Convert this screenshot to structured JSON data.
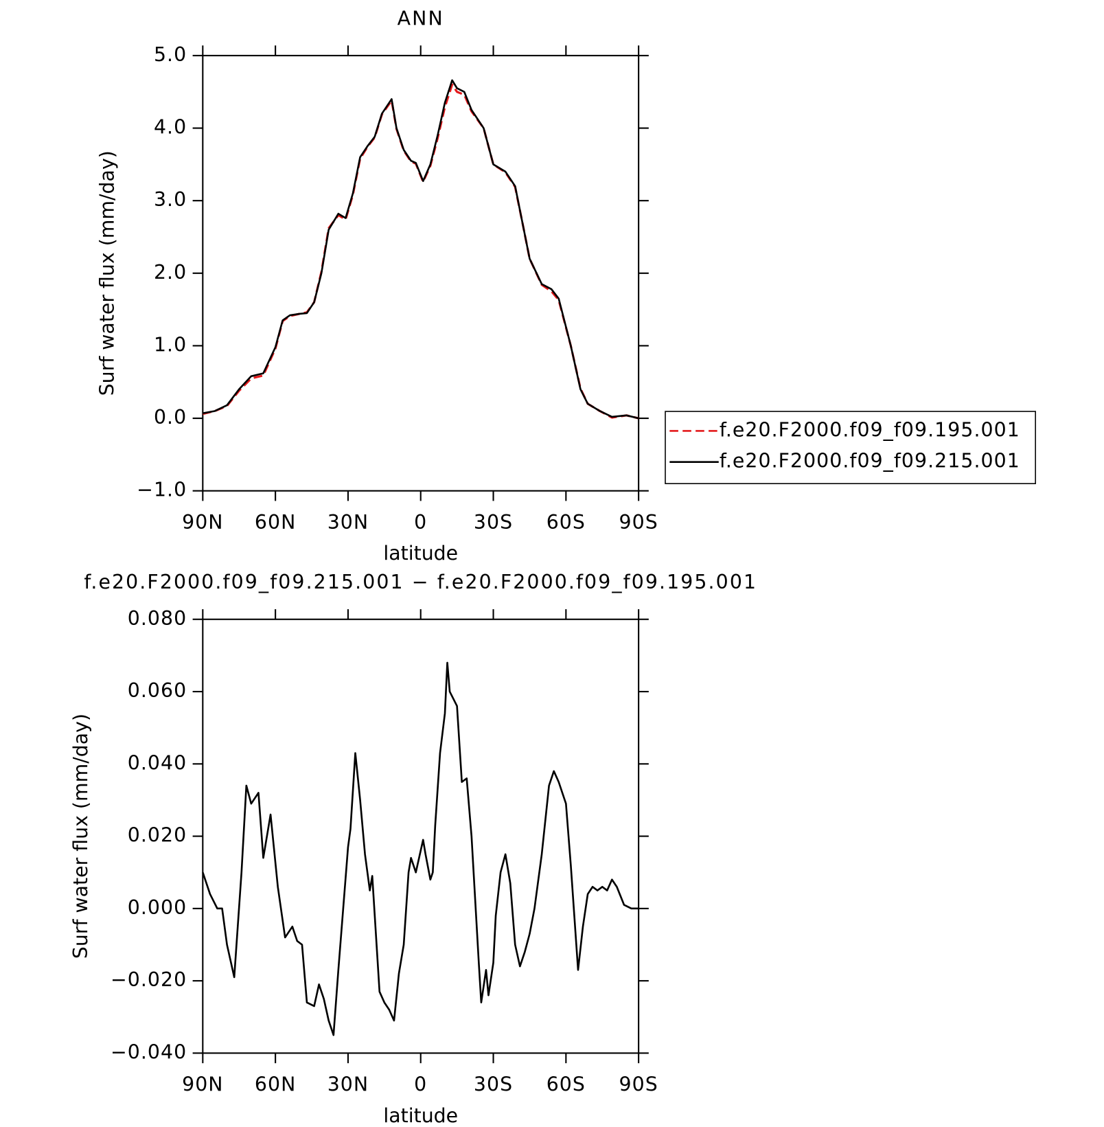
{
  "chart_data": [
    {
      "type": "line",
      "title": "ANN",
      "xlabel": "latitude",
      "ylabel": "Surf water flux (mm/day)",
      "xlim": [
        90,
        -90
      ],
      "xticks": [
        {
          "value": 90,
          "label": "90N"
        },
        {
          "value": 60,
          "label": "60N"
        },
        {
          "value": 30,
          "label": "30N"
        },
        0,
        {
          "value": -30,
          "label": "30S"
        },
        {
          "value": -60,
          "label": "60S"
        },
        {
          "value": -90,
          "label": "90S"
        }
      ],
      "ylim": [
        -1,
        5
      ],
      "yticks": [
        {
          "value": -1,
          "label": "−1.0"
        },
        {
          "value": 0,
          "label": "0.0"
        },
        {
          "value": 1,
          "label": "1.0"
        },
        {
          "value": 2,
          "label": "2.0"
        },
        {
          "value": 3,
          "label": "3.0"
        },
        {
          "value": 4,
          "label": "4.0"
        },
        {
          "value": 5,
          "label": "5.0"
        }
      ],
      "legend": "right",
      "x": [
        90,
        85,
        80,
        75,
        70,
        65,
        60,
        57,
        54,
        50,
        47,
        44,
        41,
        38,
        34,
        31,
        28,
        25,
        22,
        19,
        16,
        12,
        10,
        7,
        4,
        2,
        -1,
        -4,
        -7,
        -10,
        -13,
        -15,
        -18,
        -21,
        -26,
        -30,
        -35,
        -39,
        -42,
        -45,
        -50,
        -54,
        -57,
        -62,
        -66,
        -69,
        -74,
        -79,
        -85,
        -90
      ],
      "series": [
        {
          "name": "f.e20.F2000.f09_f09.195.001",
          "color": "#e41a1c",
          "style": "dashed",
          "values": [
            0.06,
            0.1,
            0.17,
            0.38,
            0.55,
            0.59,
            0.96,
            1.34,
            1.41,
            1.44,
            1.46,
            1.6,
            2.02,
            2.62,
            2.8,
            2.74,
            3.08,
            3.58,
            3.74,
            3.87,
            4.19,
            4.38,
            3.99,
            3.69,
            3.54,
            3.51,
            3.26,
            3.48,
            3.86,
            4.29,
            4.6,
            4.5,
            4.46,
            4.23,
            4.0,
            3.5,
            3.39,
            3.19,
            2.7,
            2.2,
            1.84,
            1.75,
            1.63,
            1.0,
            0.41,
            0.2,
            0.1,
            0.01,
            0.04,
            0.0
          ]
        },
        {
          "name": "f.e20.F2000.f09_f09.215.001",
          "color": "#000000",
          "style": "solid",
          "values": [
            0.07,
            0.1,
            0.18,
            0.4,
            0.58,
            0.62,
            0.98,
            1.35,
            1.42,
            1.44,
            1.45,
            1.6,
            2.0,
            2.6,
            2.82,
            2.76,
            3.1,
            3.6,
            3.75,
            3.88,
            4.2,
            4.4,
            4.0,
            3.7,
            3.55,
            3.52,
            3.27,
            3.5,
            3.9,
            4.35,
            4.66,
            4.55,
            4.5,
            4.25,
            4.0,
            3.5,
            3.4,
            3.2,
            2.7,
            2.2,
            1.85,
            1.78,
            1.65,
            1.0,
            0.4,
            0.2,
            0.1,
            0.02,
            0.04,
            0.0
          ]
        }
      ]
    },
    {
      "type": "line",
      "title": "f.e20.F2000.f09_f09.215.001 − f.e20.F2000.f09_f09.195.001",
      "xlabel": "latitude",
      "ylabel": "Surf water flux (mm/day)",
      "xlim": [
        90,
        -90
      ],
      "xticks": [
        {
          "value": 90,
          "label": "90N"
        },
        {
          "value": 60,
          "label": "60N"
        },
        {
          "value": 30,
          "label": "30N"
        },
        0,
        {
          "value": -30,
          "label": "30S"
        },
        {
          "value": -60,
          "label": "60S"
        },
        {
          "value": -90,
          "label": "90S"
        }
      ],
      "ylim": [
        -0.04,
        0.08
      ],
      "yticks": [
        {
          "value": -0.04,
          "label": "−0.040"
        },
        {
          "value": -0.02,
          "label": "−0.020"
        },
        {
          "value": 0,
          "label": "0.000"
        },
        {
          "value": 0.02,
          "label": "0.020"
        },
        {
          "value": 0.04,
          "label": "0.040"
        },
        {
          "value": 0.06,
          "label": "0.060"
        },
        {
          "value": 0.08,
          "label": "0.080"
        }
      ],
      "x": [
        90,
        87,
        84,
        82,
        80,
        77,
        74,
        72,
        70,
        67,
        65,
        62,
        59,
        56,
        53,
        51,
        49,
        47,
        44,
        42,
        40,
        38,
        36,
        34,
        32,
        30,
        29,
        27,
        25,
        23,
        21,
        20,
        17,
        15,
        13,
        11,
        9,
        7,
        5,
        4,
        2,
        1,
        -1,
        -2,
        -4,
        -5,
        -6,
        -8,
        -10,
        -11,
        -12,
        -15,
        -17,
        -19,
        -21,
        -24,
        -25,
        -27,
        -28,
        -30,
        -31,
        -33,
        -35,
        -37,
        -39,
        -41,
        -43,
        -45,
        -47,
        -50,
        -53,
        -55,
        -57,
        -60,
        -62,
        -65,
        -67,
        -69,
        -71,
        -73,
        -75,
        -77,
        -79,
        -81,
        -84,
        -87,
        -90
      ],
      "series": [
        {
          "color": "#000000",
          "style": "solid",
          "values": [
            0.01,
            0.004,
            0.0,
            0.0,
            -0.01,
            -0.019,
            0.01,
            0.034,
            0.029,
            0.032,
            0.014,
            0.026,
            0.006,
            -0.008,
            -0.005,
            -0.009,
            -0.01,
            -0.026,
            -0.027,
            -0.021,
            -0.025,
            -0.031,
            -0.035,
            -0.017,
            0.0,
            0.017,
            0.022,
            0.043,
            0.03,
            0.015,
            0.005,
            0.009,
            -0.023,
            -0.026,
            -0.028,
            -0.031,
            -0.018,
            -0.01,
            0.01,
            0.014,
            0.01,
            0.013,
            0.019,
            0.015,
            0.008,
            0.01,
            0.023,
            0.043,
            0.054,
            0.068,
            0.06,
            0.056,
            0.035,
            0.036,
            0.02,
            -0.015,
            -0.026,
            -0.017,
            -0.024,
            -0.015,
            -0.002,
            0.01,
            0.015,
            0.007,
            -0.01,
            -0.016,
            -0.012,
            -0.007,
            0.0,
            0.015,
            0.034,
            0.038,
            0.035,
            0.029,
            0.012,
            -0.017,
            -0.005,
            0.004,
            0.006,
            0.005,
            0.006,
            0.005,
            0.008,
            0.006,
            0.001,
            0.0,
            0.0
          ]
        }
      ]
    }
  ]
}
